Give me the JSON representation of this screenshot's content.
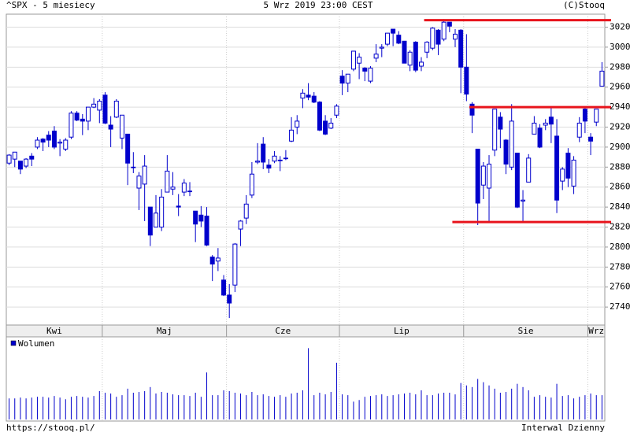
{
  "chart_data": {
    "type": "candlestick",
    "title": "^SPX - 5 miesiecy",
    "subtitle": "5 Wrz 2019 23:00 CEST",
    "credit": "(C)Stooq",
    "footer_left": "https://stooq.pl/",
    "footer_right": "Interwal Dzienny",
    "volume_name": "Wolumen",
    "up_color": "#ffffff",
    "down_color": "#0000cc",
    "line_color": "#0000cc",
    "grid": true,
    "ylim": [
      2722,
      3033
    ],
    "yticks": [
      2740,
      2760,
      2780,
      2800,
      2820,
      2840,
      2860,
      2880,
      2900,
      2920,
      2940,
      2960,
      2980,
      3000,
      3020
    ],
    "volume_ylim": [
      0,
      100
    ],
    "categories": [
      "Kwi",
      null,
      null,
      null,
      null,
      null,
      null,
      null,
      null,
      null,
      null,
      null,
      null,
      null,
      null,
      null,
      null,
      "Maj",
      null,
      null,
      null,
      null,
      null,
      null,
      null,
      null,
      null,
      null,
      null,
      null,
      null,
      null,
      null,
      null,
      null,
      null,
      null,
      null,
      null,
      "Cze",
      null,
      null,
      null,
      null,
      null,
      null,
      null,
      null,
      null,
      null,
      null,
      null,
      null,
      null,
      null,
      null,
      null,
      null,
      null,
      "Lip",
      null,
      null,
      null,
      null,
      null,
      null,
      null,
      null,
      null,
      null,
      null,
      null,
      null,
      null,
      null,
      null,
      null,
      null,
      null,
      null,
      null,
      "Sie",
      null,
      null,
      null,
      null,
      null,
      null,
      null,
      null,
      null,
      null,
      null,
      null,
      null,
      null,
      null,
      null,
      null,
      null,
      null,
      null,
      null,
      "Wrz",
      null,
      null
    ],
    "open": [
      2884,
      2888,
      2886,
      2881,
      2891,
      2900,
      2908,
      2912,
      2916,
      2904,
      2898,
      2910,
      2934,
      2928,
      2926,
      2940,
      2937,
      2952,
      2922,
      2930,
      2909,
      2913,
      2880,
      2859,
      2863,
      2840,
      2820,
      2820,
      2855,
      2858,
      2841,
      2855,
      2856,
      2836,
      2832,
      2831,
      2790,
      2786,
      2767,
      2752,
      2762,
      2818,
      2829,
      2852,
      2885,
      2903,
      2882,
      2886,
      2887,
      2889,
      2906,
      2920,
      2949,
      2952,
      2951,
      2945,
      2926,
      2919,
      2932,
      2971,
      2964,
      2978,
      2984,
      2979,
      2966,
      2989,
      2999,
      3003,
      3018,
      3012,
      3006,
      2982,
      3005,
      2981,
      2995,
      2999,
      3017,
      3008,
      3025,
      3008,
      3017,
      2980,
      2943,
      2898,
      2862,
      2859,
      2897,
      2930,
      2907,
      2880,
      2894,
      2846,
      2865,
      2913,
      2919,
      2922,
      2930,
      2911,
      2866,
      2894,
      2861,
      2910,
      2938,
      2910,
      2925,
      2961
    ],
    "high": [
      2893,
      2895,
      2886,
      2889,
      2894,
      2910,
      2909,
      2916,
      2921,
      2908,
      2909,
      2936,
      2936,
      2933,
      2940,
      2949,
      2948,
      2955,
      2931,
      2948,
      2932,
      2913,
      2895,
      2875,
      2892,
      2840,
      2852,
      2858,
      2892,
      2875,
      2853,
      2868,
      2865,
      2836,
      2841,
      2840,
      2792,
      2799,
      2772,
      2763,
      2804,
      2827,
      2852,
      2885,
      2904,
      2910,
      2888,
      2896,
      2891,
      2897,
      2930,
      2932,
      2958,
      2964,
      2955,
      2946,
      2932,
      2929,
      2943,
      2977,
      2973,
      2996,
      2994,
      2980,
      2981,
      3003,
      3003,
      3014,
      3018,
      3016,
      3006,
      2997,
      3006,
      2990,
      3006,
      3020,
      3018,
      3028,
      3025,
      3018,
      3018,
      3013,
      2945,
      2898,
      2885,
      2892,
      2938,
      2935,
      2908,
      2943,
      2894,
      2857,
      2893,
      2931,
      2923,
      2928,
      2939,
      2928,
      2880,
      2899,
      2891,
      2930,
      2940,
      2914,
      2938,
      2985
    ],
    "low": [
      2882,
      2880,
      2873,
      2879,
      2881,
      2898,
      2896,
      2900,
      2898,
      2891,
      2896,
      2908,
      2926,
      2912,
      2917,
      2939,
      2924,
      2923,
      2900,
      2929,
      2898,
      2862,
      2874,
      2837,
      2826,
      2801,
      2820,
      2816,
      2855,
      2852,
      2831,
      2851,
      2851,
      2805,
      2820,
      2801,
      2766,
      2776,
      2751,
      2729,
      2755,
      2801,
      2823,
      2849,
      2883,
      2878,
      2874,
      2884,
      2876,
      2887,
      2905,
      2913,
      2939,
      2947,
      2944,
      2916,
      2912,
      2918,
      2929,
      2952,
      2955,
      2976,
      2968,
      2966,
      2964,
      2985,
      2990,
      3001,
      3001,
      3003,
      2984,
      2976,
      2975,
      2976,
      2989,
      2997,
      2992,
      3006,
      3015,
      3000,
      2954,
      2946,
      2914,
      2822,
      2848,
      2825,
      2891,
      2899,
      2873,
      2877,
      2839,
      2825,
      2865,
      2913,
      2899,
      2917,
      2904,
      2834,
      2857,
      2860,
      2853,
      2905,
      2914,
      2892,
      2921,
      2961
    ],
    "close": [
      2892,
      2895,
      2878,
      2888,
      2888,
      2907,
      2905,
      2907,
      2900,
      2905,
      2907,
      2934,
      2927,
      2926,
      2940,
      2943,
      2946,
      2924,
      2918,
      2946,
      2932,
      2884,
      2880,
      2871,
      2881,
      2812,
      2834,
      2850,
      2876,
      2860,
      2840,
      2864,
      2856,
      2823,
      2826,
      2802,
      2783,
      2789,
      2752,
      2744,
      2803,
      2826,
      2843,
      2873,
      2886,
      2885,
      2879,
      2891,
      2887,
      2889,
      2917,
      2926,
      2954,
      2950,
      2945,
      2917,
      2913,
      2924,
      2941,
      2964,
      2973,
      2996,
      2990,
      2976,
      2979,
      2993,
      3000,
      3014,
      3014,
      3004,
      2984,
      2995,
      2977,
      2985,
      3005,
      3019,
      3003,
      3025,
      3021,
      3013,
      2980,
      2953,
      2932,
      2844,
      2881,
      2883,
      2938,
      2918,
      2883,
      2926,
      2840,
      2847,
      2889,
      2924,
      2900,
      2924,
      2923,
      2847,
      2878,
      2869,
      2887,
      2924,
      2926,
      2906,
      2938,
      2976
    ],
    "volume": [
      26,
      26,
      27,
      26,
      27,
      28,
      28,
      27,
      29,
      27,
      25,
      28,
      29,
      28,
      27,
      29,
      35,
      33,
      32,
      28,
      30,
      38,
      33,
      34,
      35,
      40,
      32,
      34,
      33,
      31,
      30,
      30,
      29,
      33,
      28,
      58,
      30,
      30,
      36,
      35,
      33,
      32,
      30,
      34,
      30,
      31,
      29,
      28,
      30,
      28,
      32,
      33,
      36,
      88,
      30,
      33,
      31,
      34,
      70,
      31,
      30,
      22,
      24,
      28,
      29,
      30,
      31,
      29,
      30,
      31,
      32,
      33,
      31,
      36,
      30,
      30,
      32,
      33,
      33,
      31,
      45,
      42,
      40,
      50,
      46,
      42,
      38,
      33,
      34,
      38,
      44,
      40,
      36,
      28,
      30,
      28,
      27,
      44,
      29,
      30,
      26,
      28,
      30,
      32,
      30,
      30
    ],
    "level_color": "#e8141c",
    "levels": [
      {
        "value": 3027,
        "start": 74
      },
      {
        "value": 2940,
        "start": 82
      },
      {
        "value": 2825,
        "start": 79
      }
    ]
  }
}
